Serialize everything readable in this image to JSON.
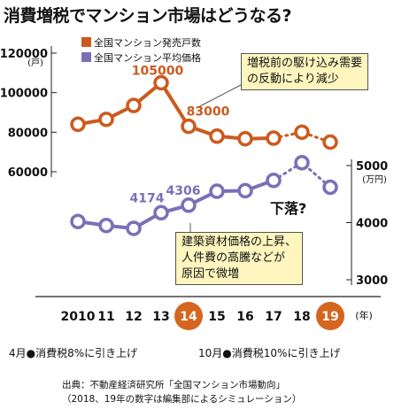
{
  "title": "消費増税でマンション市場はどうなる?",
  "legend": [
    {
      "label": "全国マンション発売戸数",
      "color": "#cc5a1e"
    },
    {
      "label": "全国マンション平均価格",
      "color": "#7a70b8"
    }
  ],
  "callouts": {
    "top": [
      "増税前の駆け込み需要",
      "の反動により減少"
    ],
    "bottom": [
      "建築資材価格の上昇、",
      "人件費の高騰などが",
      "原因で微増"
    ]
  },
  "down_label": "下落?",
  "notes": {
    "left_prefix": "4月",
    "left_text": "消費税8%に引き上げ",
    "right_prefix": "10月",
    "right_text": "消費税10%に引き上げ"
  },
  "source": [
    "出典：不動産経済研究所「全国マンション市場動向」",
    "（2018、19年の数字は編集部によるシミュレーション）"
  ],
  "chart_data": {
    "type": "line",
    "x": [
      "2010",
      "11",
      "12",
      "13",
      "14",
      "15",
      "16",
      "17",
      "18",
      "19"
    ],
    "x_unit": "(年)",
    "highlight_x": [
      "14",
      "19"
    ],
    "series": [
      {
        "name": "全国マンション発売戸数",
        "axis": "left",
        "unit": "(戸)",
        "color": "#cc5a1e",
        "values": [
          84000,
          86500,
          93500,
          105000,
          83000,
          78000,
          76700,
          77000,
          80000,
          75000
        ],
        "projected_from_index": 7,
        "labels": {
          "3": "105000",
          "4": "83000"
        }
      },
      {
        "name": "全国マンション平均価格",
        "axis": "right",
        "unit": "(万円)",
        "color": "#7a70b8",
        "values": [
          4020,
          3950,
          3900,
          4174,
          4306,
          4550,
          4560,
          4740,
          5050,
          4620
        ],
        "projected_from_index": 7,
        "labels": {
          "3": "4174",
          "4": "4306"
        }
      }
    ],
    "y_left": {
      "ticks": [
        "120000",
        "100000",
        "80000",
        "60000"
      ],
      "min": 60000,
      "max": 120000
    },
    "y_right": {
      "ticks": [
        "5000",
        "4000",
        "3000"
      ],
      "min": 3000,
      "max": 5000
    }
  }
}
